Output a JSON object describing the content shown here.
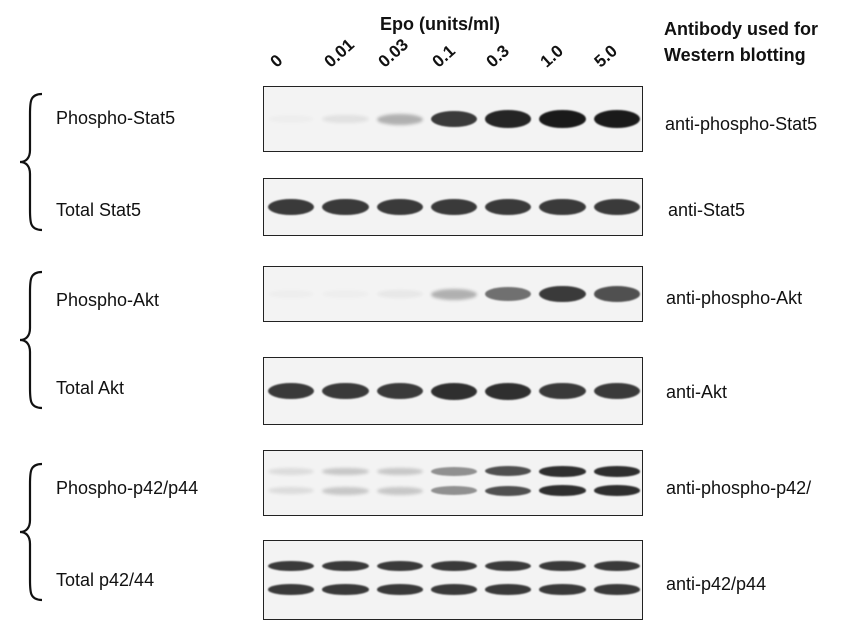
{
  "header": {
    "title": "Epo (units/ml)",
    "antibody_heading_line1": "Antibody used for",
    "antibody_heading_line2": "Western blotting"
  },
  "concentrations": [
    "0",
    "0.01",
    "0.03",
    "0.1",
    "0.3",
    "1.0",
    "5.0"
  ],
  "rows": [
    {
      "label": "Phospho-Stat5",
      "antibody": "anti-phospho-Stat5",
      "intensity": [
        0.0,
        0.08,
        0.3,
        0.85,
        0.95,
        1.0,
        1.0
      ]
    },
    {
      "label": "Total Stat5",
      "antibody": "anti-Stat5",
      "intensity": [
        0.85,
        0.85,
        0.85,
        0.85,
        0.85,
        0.85,
        0.85
      ]
    },
    {
      "label": "Phospho-Akt",
      "antibody": "anti-phospho-Akt",
      "intensity": [
        0.0,
        0.0,
        0.05,
        0.3,
        0.6,
        0.85,
        0.75
      ]
    },
    {
      "label": "Total Akt",
      "antibody": "anti-Akt",
      "intensity": [
        0.85,
        0.85,
        0.85,
        0.9,
        0.9,
        0.85,
        0.85
      ]
    },
    {
      "label": "Phospho-p42/p44",
      "antibody": "anti-phospho-p42/",
      "intensity": [
        0.1,
        0.2,
        0.2,
        0.45,
        0.75,
        0.9,
        0.9
      ]
    },
    {
      "label": "Total p42/44",
      "antibody": "anti-p42/p44",
      "intensity": [
        0.85,
        0.85,
        0.85,
        0.85,
        0.85,
        0.85,
        0.85
      ]
    }
  ],
  "colors": {
    "band": "#1a1a1a",
    "membrane": "#f3f3f3",
    "border": "#222222"
  }
}
